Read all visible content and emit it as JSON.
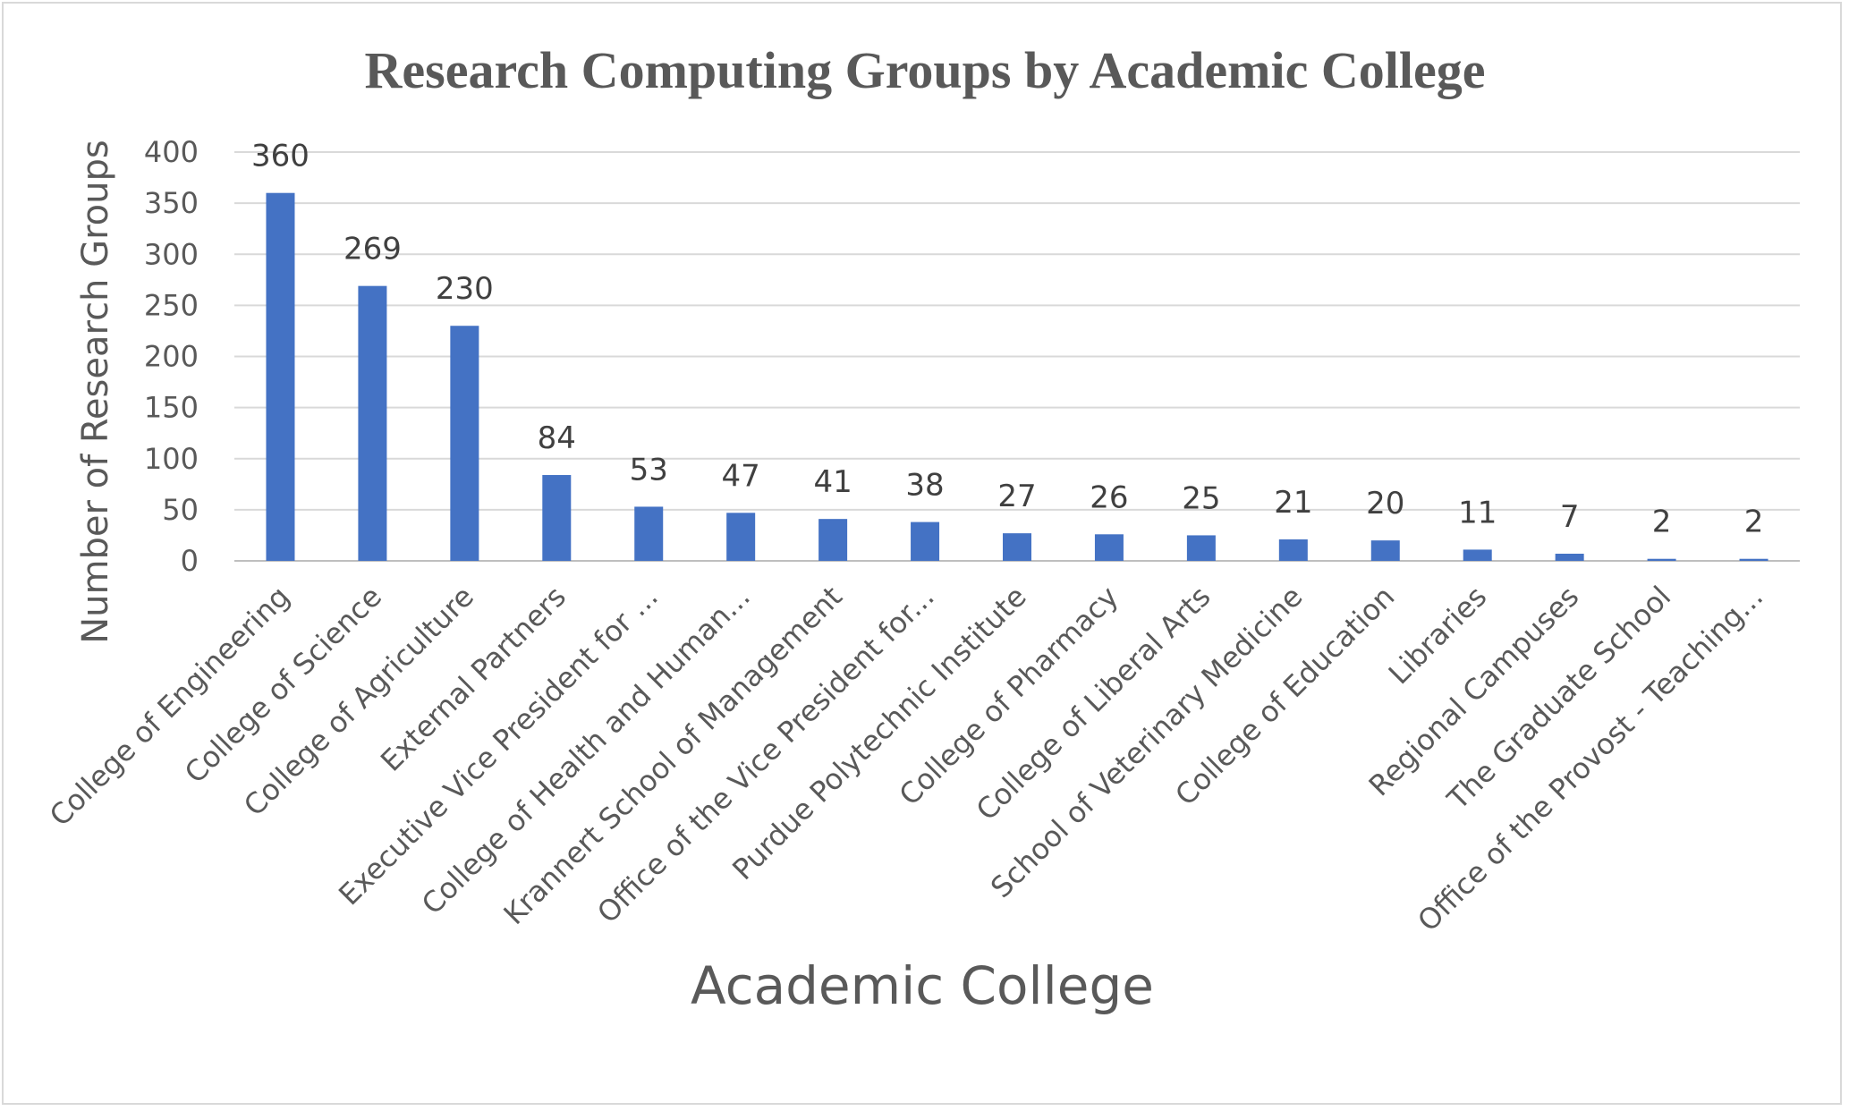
{
  "chart_data": {
    "type": "bar",
    "title": "Research Computing Groups by Academic College",
    "xlabel": "Academic College",
    "ylabel": "Number of Research Groups",
    "ylim": [
      0,
      400
    ],
    "yticks": [
      0,
      50,
      100,
      150,
      200,
      250,
      300,
      350,
      400
    ],
    "grid": true,
    "legend": "none",
    "bar_color": "#4472c4",
    "categories": [
      "College of Engineering",
      "College of Science",
      "College of Agriculture",
      "External Partners",
      "Executive Vice President for ...",
      "College of Health and Human...",
      "Krannert School of Management",
      "Office of the Vice President for...",
      "Purdue Polytechnic Institute",
      "College of Pharmacy",
      "College of Liberal Arts",
      "School of Veterinary Medicine",
      "College of Education",
      "Libraries",
      "Regional Campuses",
      "The Graduate School",
      "Office of the Provost - Teaching..."
    ],
    "values": [
      360,
      269,
      230,
      84,
      53,
      47,
      41,
      38,
      27,
      26,
      25,
      21,
      20,
      11,
      7,
      2,
      2
    ]
  }
}
